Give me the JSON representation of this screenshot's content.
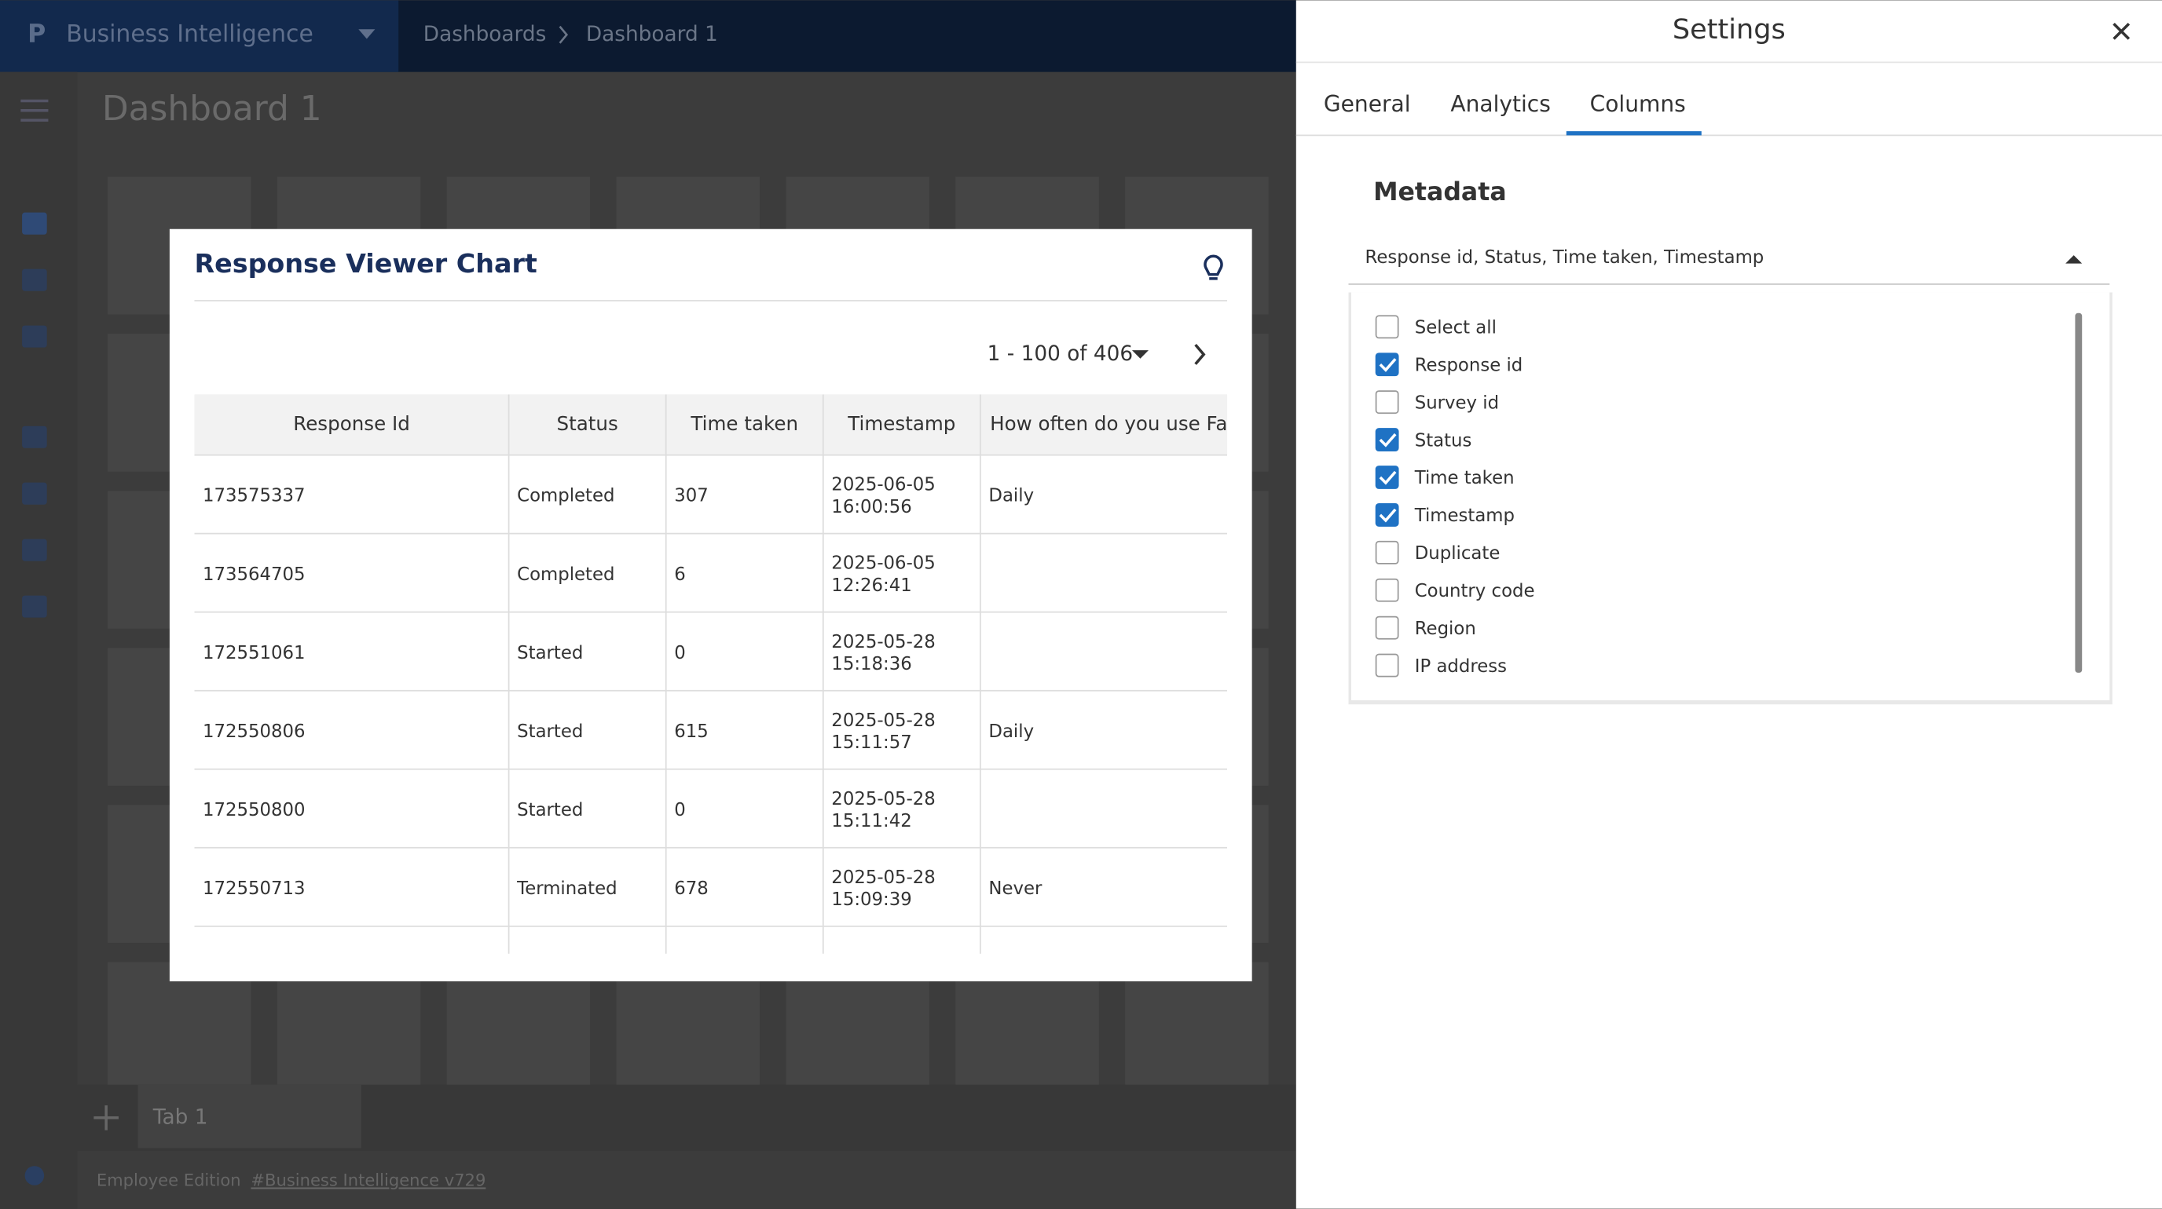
{
  "app": {
    "title": "Business Intelligence",
    "breadcrumb": [
      "Dashboards",
      "Dashboard 1"
    ]
  },
  "page": {
    "title": "Dashboard 1"
  },
  "chart": {
    "title": "Response Viewer Chart",
    "pagination": "1 - 100 of 406",
    "columns": [
      "Response Id",
      "Status",
      "Time taken",
      "Timestamp",
      "How often do you use Faceb"
    ],
    "rows": [
      [
        "173575337",
        "Completed",
        "307",
        [
          "2025-06-05",
          "16:00:56"
        ],
        "Daily"
      ],
      [
        "173564705",
        "Completed",
        "6",
        [
          "2025-06-05",
          "12:26:41"
        ],
        null
      ],
      [
        "172551061",
        "Started",
        "0",
        [
          "2025-05-28",
          "15:18:36"
        ],
        null
      ],
      [
        "172550806",
        "Started",
        "615",
        [
          "2025-05-28",
          "15:11:57"
        ],
        "Daily"
      ],
      [
        "172550800",
        "Started",
        "0",
        [
          "2025-05-28",
          "15:11:42"
        ],
        null
      ],
      [
        "172550713",
        "Terminated",
        "678",
        [
          "2025-05-28",
          "15:09:39"
        ],
        "Never"
      ]
    ]
  },
  "tabs": [
    "Tab 1"
  ],
  "footer": {
    "edition": "Employee Edition",
    "link": "#Business Intelligence v729"
  },
  "settings": {
    "title": "Settings",
    "tabs": [
      "General",
      "Analytics",
      "Columns"
    ],
    "section": "Metadata",
    "selected": "Response id, Status, Time taken, Timestamp",
    "options": [
      {
        "label": "Select all",
        "checked": false
      },
      {
        "label": "Response id",
        "checked": true
      },
      {
        "label": "Survey id",
        "checked": false
      },
      {
        "label": "Status",
        "checked": true
      },
      {
        "label": "Time taken",
        "checked": true
      },
      {
        "label": "Timestamp",
        "checked": true
      },
      {
        "label": "Duplicate",
        "checked": false
      },
      {
        "label": "Country code",
        "checked": false
      },
      {
        "label": "Region",
        "checked": false
      },
      {
        "label": "IP address",
        "checked": false
      }
    ]
  }
}
